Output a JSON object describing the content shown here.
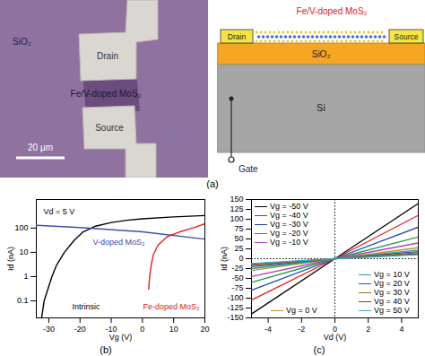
{
  "figure": {
    "panel_a": {
      "panel_label": "(a)",
      "micrograph": {
        "substrate": "SiO₂",
        "drain": "Drain",
        "channel": "Fe/V-doped MoS₂",
        "source": "Source",
        "scale_bar": "20 μm"
      },
      "schematic": {
        "channel": "Fe/V-doped MoS₂",
        "drain": "Drain",
        "source": "Source",
        "dielectric": "SiO₂",
        "substrate": "Si",
        "gate": "Gate"
      }
    }
  },
  "chart_data": [
    {
      "type": "line",
      "panel_label": "(b)",
      "x_label": "Vg (V)",
      "y_label": "Id (nA)",
      "annotations": [
        "Vd = 5 V"
      ],
      "log": "y",
      "xlim": [
        -34,
        20
      ],
      "xticks": [
        -30,
        -20,
        -10,
        0,
        10,
        20
      ],
      "ylim": [
        0.02,
        1500
      ],
      "yticks": [
        0.1,
        1,
        10,
        100
      ],
      "series": [
        {
          "name": "Intrinsic",
          "color": "#000000",
          "x": [
            -32.3,
            -31.5,
            -30,
            -29,
            -27.5,
            -25,
            -22,
            -19,
            -15,
            -10,
            -5,
            0,
            10,
            20
          ],
          "values": [
            0.02,
            0.1,
            0.4,
            1,
            3,
            10,
            30,
            70,
            120,
            170,
            210,
            240,
            290,
            330
          ]
        },
        {
          "name": "V-doped MoS₂",
          "color": "#3a4fb5",
          "x": [
            -34,
            -20,
            0,
            20
          ],
          "values": [
            130,
            105,
            70,
            35
          ]
        },
        {
          "name": "Fe-doped MoS₂",
          "color": "#e0201a",
          "x": [
            2,
            2.3,
            2.8,
            3.5,
            5,
            8,
            12,
            16,
            20
          ],
          "values": [
            0.3,
            1,
            3,
            8,
            20,
            45,
            70,
            100,
            150
          ]
        }
      ]
    },
    {
      "type": "line",
      "panel_label": "(c)",
      "x_label": "Vd (V)",
      "y_label": "Id (nA)",
      "xlim": [
        -5,
        5
      ],
      "xticks": [
        -4,
        -2,
        0,
        2,
        4
      ],
      "ylim": [
        -150,
        150
      ],
      "yticks": [
        -150,
        -125,
        -100,
        -75,
        -50,
        -25,
        0,
        25,
        50,
        75,
        100,
        125,
        150
      ],
      "hlines": [
        0
      ],
      "vlines": [
        0
      ],
      "x": [
        -5,
        0,
        5
      ],
      "series": [
        {
          "name": "Vg = -50 V",
          "color": "#000000",
          "values": [
            -140,
            0,
            140
          ]
        },
        {
          "name": "Vg = -40 V",
          "color": "#e41a1c",
          "values": [
            -105,
            0,
            110
          ]
        },
        {
          "name": "Vg = -30 V",
          "color": "#1f3fbf",
          "values": [
            -80,
            0,
            80
          ]
        },
        {
          "name": "Vg = -20 V",
          "color": "#1a9f3f",
          "values": [
            -60,
            0,
            55
          ]
        },
        {
          "name": "Vg = -10 V",
          "color": "#b040c0",
          "values": [
            -45,
            0,
            40
          ]
        },
        {
          "name": "Vg = 0 V",
          "color": "#c09020",
          "values": [
            -30,
            0,
            28
          ]
        },
        {
          "name": "Vg = 10 V",
          "color": "#20a0a0",
          "values": [
            -25,
            0,
            22
          ]
        },
        {
          "name": "Vg = 20 V",
          "color": "#3050c0",
          "values": [
            -20,
            0,
            18
          ]
        },
        {
          "name": "Vg = 30 V",
          "color": "#8a7a10",
          "values": [
            -17,
            0,
            15
          ]
        },
        {
          "name": "Vg = 40 V",
          "color": "#a03030",
          "values": [
            -14,
            0,
            12
          ]
        },
        {
          "name": "Vg = 50 V",
          "color": "#30b0c0",
          "values": [
            -12,
            0,
            10
          ]
        }
      ]
    }
  ]
}
